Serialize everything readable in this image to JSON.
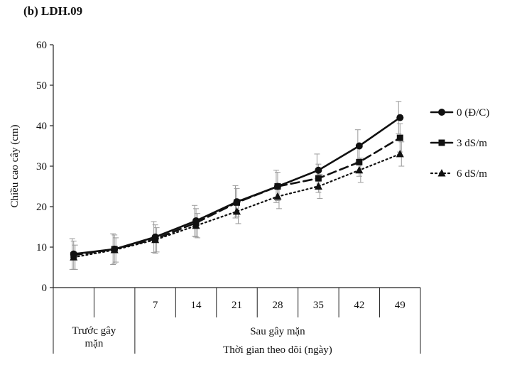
{
  "chart_data": {
    "type": "line",
    "title": "(b) LDH.09",
    "ylabel": "Chiều cao cây (cm)",
    "xlabel": "Thời gian theo dõi (ngày)",
    "ylim": [
      0,
      60
    ],
    "yticks": [
      "0",
      "10",
      "20",
      "30",
      "40",
      "50",
      "60"
    ],
    "categories": [
      "",
      "",
      "7",
      "14",
      "21",
      "28",
      "35",
      "42",
      "49"
    ],
    "groups": [
      {
        "label": "Trước gây mặn",
        "span": 2
      },
      {
        "label": "Sau gây mặn",
        "span": 7
      }
    ],
    "series": [
      {
        "name": "0 (Đ/C)",
        "marker": "circle",
        "dash": "solid",
        "values": [
          8.3,
          9.5,
          12.5,
          16.5,
          21.2,
          25.0,
          29.0,
          35.0,
          42.0
        ],
        "errors": [
          3.8,
          3.8,
          3.8,
          3.8,
          4.0,
          4.0,
          4.0,
          4.0,
          4.0
        ]
      },
      {
        "name": "3 dS/m",
        "marker": "square",
        "dash": "dashed",
        "values": [
          8.0,
          9.5,
          12.0,
          16.0,
          21.0,
          25.0,
          27.0,
          31.0,
          37.0
        ],
        "errors": [
          3.5,
          3.5,
          3.5,
          3.5,
          3.5,
          3.5,
          3.5,
          3.5,
          3.5
        ]
      },
      {
        "name": "6 dS/m",
        "marker": "triangle",
        "dash": "dotted",
        "values": [
          7.5,
          9.3,
          11.8,
          15.3,
          18.8,
          22.5,
          25.0,
          29.0,
          33.0
        ],
        "errors": [
          3.0,
          3.0,
          3.0,
          3.0,
          3.0,
          3.0,
          3.0,
          3.0,
          3.0
        ]
      }
    ],
    "legend_position": "right",
    "grid": false
  }
}
